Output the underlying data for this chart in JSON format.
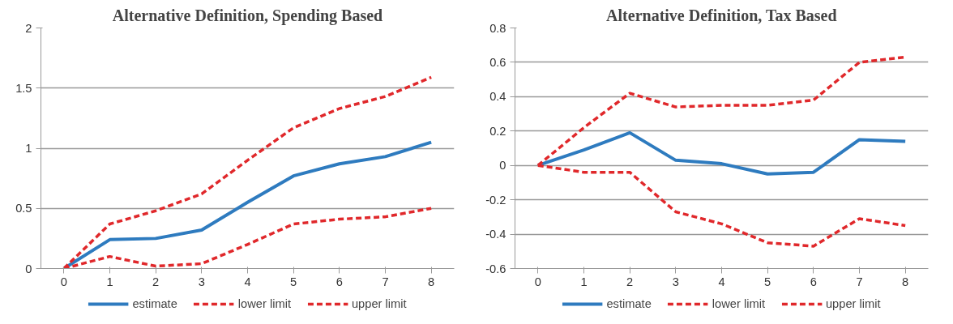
{
  "chart_data": [
    {
      "type": "line",
      "title": "Alternative Definition, Spending Based",
      "categories": [
        "0",
        "1",
        "2",
        "3",
        "4",
        "5",
        "6",
        "7",
        "8"
      ],
      "ylim": [
        0,
        2
      ],
      "yticks": [
        0,
        0.5,
        1,
        1.5,
        2
      ],
      "grid": "y",
      "legend": "bottom",
      "series": [
        {
          "name": "estimate",
          "color": "#2e7bbf",
          "line_style": "solid",
          "values": [
            0,
            0.24,
            0.25,
            0.32,
            0.55,
            0.77,
            0.87,
            0.93,
            1.05
          ]
        },
        {
          "name": "lower limit",
          "color": "#e0282b",
          "line_style": "dashed",
          "values": [
            0,
            0.1,
            0.02,
            0.04,
            0.2,
            0.37,
            0.41,
            0.43,
            0.5
          ]
        },
        {
          "name": "upper limit",
          "color": "#e0282b",
          "line_style": "dashed",
          "values": [
            0,
            0.37,
            0.48,
            0.62,
            0.9,
            1.17,
            1.33,
            1.43,
            1.59
          ]
        }
      ]
    },
    {
      "type": "line",
      "title": "Alternative Definition, Tax Based",
      "categories": [
        "0",
        "1",
        "2",
        "3",
        "4",
        "5",
        "6",
        "7",
        "8"
      ],
      "ylim": [
        -0.6,
        0.8
      ],
      "yticks": [
        -0.6,
        -0.4,
        -0.2,
        0,
        0.2,
        0.4,
        0.6,
        0.8
      ],
      "grid": "y",
      "legend": "bottom",
      "series": [
        {
          "name": "estimate",
          "color": "#2e7bbf",
          "line_style": "solid",
          "values": [
            0,
            0.09,
            0.19,
            0.03,
            0.01,
            -0.05,
            -0.04,
            0.15,
            0.14
          ]
        },
        {
          "name": "lower limit",
          "color": "#e0282b",
          "line_style": "dashed",
          "values": [
            0,
            -0.04,
            -0.04,
            -0.27,
            -0.34,
            -0.45,
            -0.47,
            -0.31,
            -0.35
          ]
        },
        {
          "name": "upper limit",
          "color": "#e0282b",
          "line_style": "dashed",
          "values": [
            0,
            0.22,
            0.42,
            0.34,
            0.35,
            0.35,
            0.38,
            0.6,
            0.63
          ]
        }
      ]
    }
  ]
}
